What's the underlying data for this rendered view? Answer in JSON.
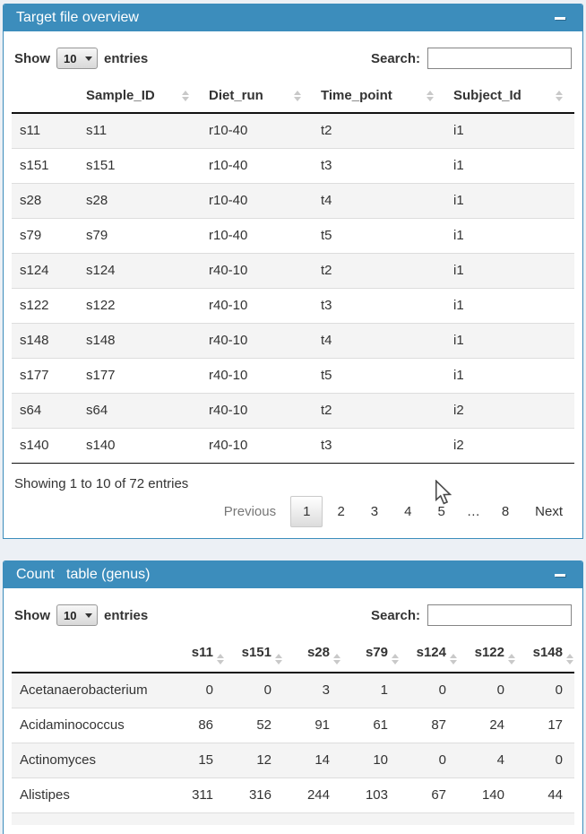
{
  "accent_color": "#3c8dbc",
  "page_background": "#ecf0f5",
  "target_box": {
    "title": "Target file overview",
    "controls": {
      "show_label": "Show",
      "page_length": "10",
      "entries_label": "entries",
      "search_label": "Search:",
      "search_value": ""
    },
    "table": {
      "columns": [
        {
          "label": "",
          "sortable": false
        },
        {
          "label": "Sample_ID",
          "sortable": true
        },
        {
          "label": "Diet_run",
          "sortable": true
        },
        {
          "label": "Time_point",
          "sortable": true
        },
        {
          "label": "Subject_Id",
          "sortable": true
        }
      ],
      "rows": [
        [
          "s11",
          "s11",
          "r10-40",
          "t2",
          "i1"
        ],
        [
          "s151",
          "s151",
          "r10-40",
          "t3",
          "i1"
        ],
        [
          "s28",
          "s28",
          "r10-40",
          "t4",
          "i1"
        ],
        [
          "s79",
          "s79",
          "r10-40",
          "t5",
          "i1"
        ],
        [
          "s124",
          "s124",
          "r40-10",
          "t2",
          "i1"
        ],
        [
          "s122",
          "s122",
          "r40-10",
          "t3",
          "i1"
        ],
        [
          "s148",
          "s148",
          "r40-10",
          "t4",
          "i1"
        ],
        [
          "s177",
          "s177",
          "r40-10",
          "t5",
          "i1"
        ],
        [
          "s64",
          "s64",
          "r40-10",
          "t2",
          "i2"
        ],
        [
          "s140",
          "s140",
          "r40-10",
          "t3",
          "i2"
        ]
      ]
    },
    "info": "Showing 1 to 10 of 72 entries",
    "pagination": {
      "previous": "Previous",
      "pages": [
        "1",
        "2",
        "3",
        "4",
        "5",
        "…",
        "8"
      ],
      "active_page": "1",
      "next": "Next"
    }
  },
  "count_box": {
    "title": "Count   table (genus)",
    "controls": {
      "show_label": "Show",
      "page_length": "10",
      "entries_label": "entries",
      "search_label": "Search:",
      "search_value": ""
    },
    "table": {
      "columns": [
        {
          "label": "",
          "sortable": false
        },
        {
          "label": "s11",
          "sortable": true
        },
        {
          "label": "s151",
          "sortable": true
        },
        {
          "label": "s28",
          "sortable": true
        },
        {
          "label": "s79",
          "sortable": true
        },
        {
          "label": "s124",
          "sortable": true
        },
        {
          "label": "s122",
          "sortable": true
        },
        {
          "label": "s148",
          "sortable": true
        }
      ],
      "rows": [
        [
          "Acetanaerobacterium",
          0,
          0,
          3,
          1,
          0,
          0,
          0
        ],
        [
          "Acidaminococcus",
          86,
          52,
          91,
          61,
          87,
          24,
          17
        ],
        [
          "Actinomyces",
          15,
          12,
          14,
          10,
          0,
          4,
          0
        ],
        [
          "Alistipes",
          311,
          316,
          244,
          103,
          67,
          140,
          44
        ]
      ]
    }
  }
}
